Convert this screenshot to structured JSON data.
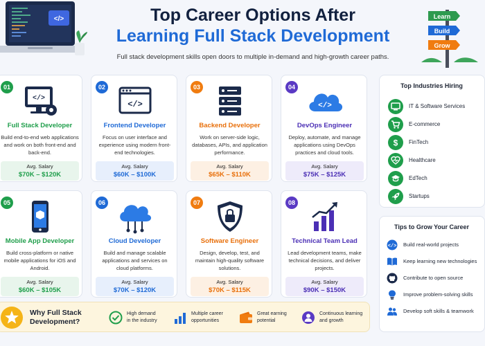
{
  "header": {
    "title_line1": "Top Career Options After",
    "title_line2": "Learning Full Stack Development",
    "subtitle": "Full stack development skills open doors to multiple in-demand and high-growth career paths.",
    "laptop_screen_label": "</>",
    "signpost": [
      "Learn",
      "Build",
      "Grow"
    ]
  },
  "careers": [
    {
      "number": "01",
      "title": "Full Stack Developer",
      "description": "Build end-to-end web applications and work on both front-end and back-end.",
      "salary_label": "Avg. Salary",
      "salary": "$70K – $120K",
      "color": "green",
      "icon": "monitor-code-gear-icon"
    },
    {
      "number": "02",
      "title": "Frontend Developer",
      "description": "Focus on user interface and experience using modern front-end technologies.",
      "salary_label": "Avg. Salary",
      "salary": "$60K – $100K",
      "color": "blue",
      "icon": "browser-code-icon"
    },
    {
      "number": "03",
      "title": "Backend Developer",
      "description": "Work on server-side logic, databases, APIs, and application performance.",
      "salary_label": "Avg. Salary",
      "salary": "$65K – $110K",
      "color": "orange",
      "icon": "server-icon"
    },
    {
      "number": "04",
      "title": "DevOps Engineer",
      "description": "Deploy, automate, and manage applications using DevOps practices and cloud tools.",
      "salary_label": "Avg. Salary",
      "salary": "$75K – $125K",
      "color": "purple",
      "icon": "cloud-code-icon"
    },
    {
      "number": "05",
      "title": "Mobile App Developer",
      "description": "Build cross-platform or native mobile applications for iOS and Android.",
      "salary_label": "Avg. Salary",
      "salary": "$60K – $105K",
      "color": "green",
      "icon": "smartphone-icon"
    },
    {
      "number": "06",
      "title": "Cloud Developer",
      "description": "Build and manage scalable applications and services on cloud platforms.",
      "salary_label": "Avg. Salary",
      "salary": "$70K – $120K",
      "color": "blue",
      "icon": "cloud-network-icon"
    },
    {
      "number": "07",
      "title": "Software Engineer",
      "description": "Design, develop, test, and maintain high-quality software solutions.",
      "salary_label": "Avg. Salary",
      "salary": "$70K – $115K",
      "color": "orange",
      "icon": "shield-code-icon"
    },
    {
      "number": "08",
      "title": "Technical Team Lead",
      "description": "Lead development teams, make technical decisions, and deliver projects.",
      "salary_label": "Avg. Salary",
      "salary": "$90K – $150K",
      "color": "purple",
      "icon": "growth-chart-icon"
    }
  ],
  "industries": {
    "title": "Top Industries Hiring",
    "items": [
      {
        "label": "IT & Software Services",
        "icon": "monitor-icon"
      },
      {
        "label": "E-commerce",
        "icon": "cart-icon"
      },
      {
        "label": "FinTech",
        "icon": "dollar-icon"
      },
      {
        "label": "Healthcare",
        "icon": "heart-pulse-icon"
      },
      {
        "label": "EdTech",
        "icon": "graduation-cap-icon"
      },
      {
        "label": "Startups",
        "icon": "rocket-icon"
      }
    ]
  },
  "tips": {
    "title": "Tips to Grow Your Career",
    "items": [
      {
        "label": "Build real-world projects",
        "icon": "code-icon"
      },
      {
        "label": "Keep learning new technologies",
        "icon": "book-icon"
      },
      {
        "label": "Contribute to open source",
        "icon": "github-icon"
      },
      {
        "label": "Improve problem-solving skills",
        "icon": "lightbulb-icon"
      },
      {
        "label": "Develop soft skills & teamwork",
        "icon": "team-icon"
      }
    ]
  },
  "why": {
    "title_line1": "Why Full Stack",
    "title_line2": "Development?",
    "benefits": [
      {
        "line1": "High demand",
        "line2": "in the industry",
        "icon": "check-circle-icon"
      },
      {
        "line1": "Multiple career",
        "line2": "opportunities",
        "icon": "bar-chart-icon"
      },
      {
        "line1": "Great earning",
        "line2": "potential",
        "icon": "wallet-icon"
      },
      {
        "line1": "Continuous learning",
        "line2": "and growth",
        "icon": "growth-person-icon"
      }
    ]
  },
  "colors": {
    "green": "#1f9e4b",
    "blue": "#1f6ad6",
    "orange": "#f07c10",
    "purple": "#5a3ac4",
    "navy": "#12213f",
    "star": "#f5b417"
  }
}
